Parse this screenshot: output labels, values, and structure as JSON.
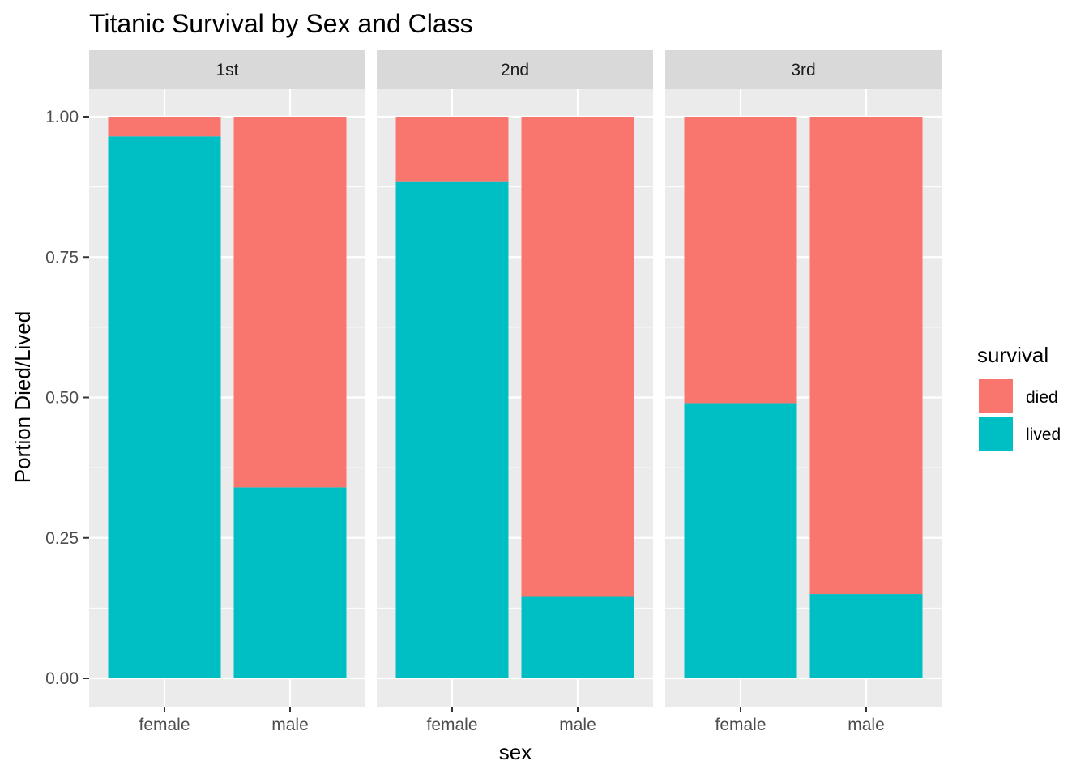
{
  "chart_data": {
    "type": "bar",
    "stacked": true,
    "title": "Titanic Survival by Sex and Class",
    "xlabel": "sex",
    "ylabel": "Portion Died/Lived",
    "ylim": [
      0,
      1.05
    ],
    "y_ticks": [
      "0.00",
      "0.25",
      "0.50",
      "0.75",
      "1.00"
    ],
    "y_tick_values": [
      0,
      0.25,
      0.5,
      0.75,
      1.0
    ],
    "categories": [
      "female",
      "male"
    ],
    "facets": [
      {
        "label": "1st",
        "series": [
          {
            "name": "died",
            "values": [
              0.035,
              0.66
            ]
          },
          {
            "name": "lived",
            "values": [
              0.965,
              0.34
            ]
          }
        ]
      },
      {
        "label": "2nd",
        "series": [
          {
            "name": "died",
            "values": [
              0.115,
              0.855
            ]
          },
          {
            "name": "lived",
            "values": [
              0.885,
              0.145
            ]
          }
        ]
      },
      {
        "label": "3rd",
        "series": [
          {
            "name": "died",
            "values": [
              0.51,
              0.85
            ]
          },
          {
            "name": "lived",
            "values": [
              0.49,
              0.15
            ]
          }
        ]
      }
    ],
    "legend": {
      "title": "survival",
      "position": "right",
      "items": [
        {
          "label": "died",
          "color": "#F8766D"
        },
        {
          "label": "lived",
          "color": "#00BFC4"
        }
      ]
    },
    "colors": {
      "died": "#F8766D",
      "lived": "#00BFC4",
      "panel_background": "#EBEBEB",
      "strip_background": "#D9D9D9",
      "grid": "#FFFFFF"
    },
    "grid": true
  }
}
